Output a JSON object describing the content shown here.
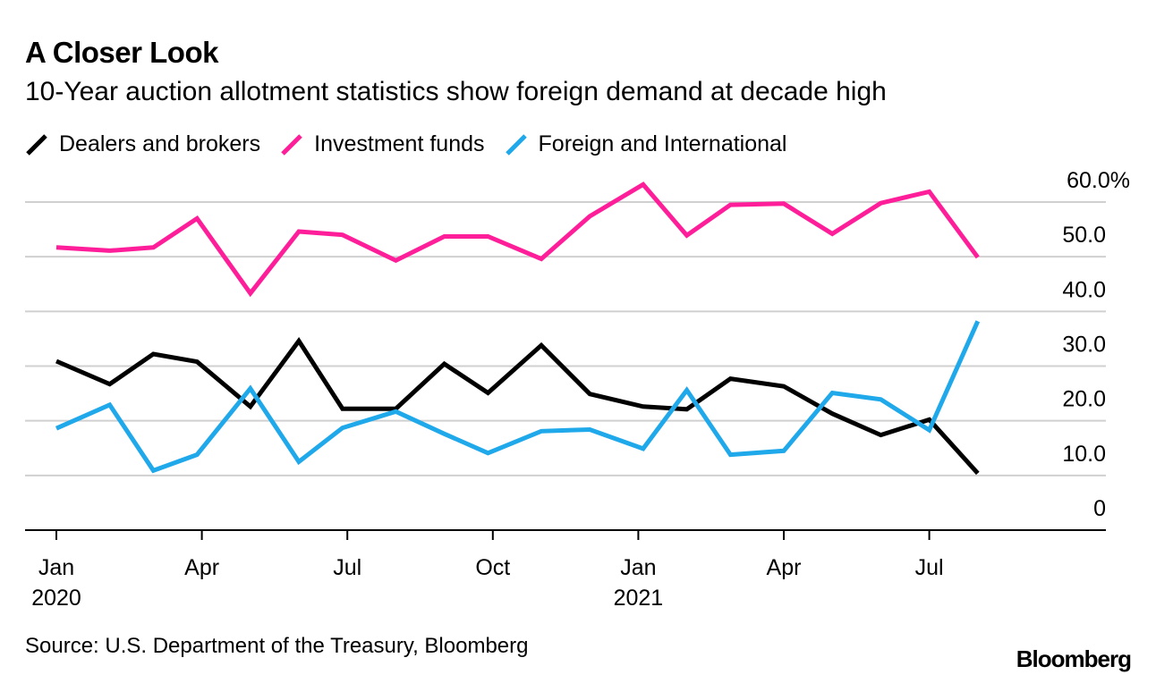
{
  "title": "A Closer Look",
  "subtitle": "10-Year auction allotment statistics show foreign demand at decade high",
  "source": "Source: U.S. Department of the Treasury, Bloomberg",
  "brand": "Bloomberg",
  "chart_data": {
    "type": "line",
    "ylim": [
      0,
      60
    ],
    "yticks": [
      0,
      10,
      20,
      30,
      40,
      50,
      60
    ],
    "ytick_labels": [
      "0",
      "10.0",
      "20.0",
      "30.0",
      "40.0",
      "50.0",
      "60.0%"
    ],
    "grid": true,
    "legend_position": "top-left",
    "x_month_index_range": [
      -0.2,
      20.5
    ],
    "xticks": [
      {
        "month_index": 0,
        "label": "Jan",
        "sublabel": "2020"
      },
      {
        "month_index": 3,
        "label": "Apr",
        "sublabel": ""
      },
      {
        "month_index": 6,
        "label": "Jul",
        "sublabel": ""
      },
      {
        "month_index": 9,
        "label": "Oct",
        "sublabel": ""
      },
      {
        "month_index": 12,
        "label": "Jan",
        "sublabel": "2021"
      },
      {
        "month_index": 15,
        "label": "Apr",
        "sublabel": ""
      },
      {
        "month_index": 18,
        "label": "Jul",
        "sublabel": ""
      }
    ],
    "x": [
      0,
      1.1,
      2,
      2.9,
      4,
      5,
      5.9,
      7,
      8,
      8.9,
      10,
      11,
      12.1,
      13,
      13.9,
      15,
      16,
      17,
      18,
      19
    ],
    "series": [
      {
        "name": "Dealers and brokers",
        "color": "#000000",
        "values": [
          30.9,
          26.7,
          32.2,
          30.8,
          22.6,
          34.6,
          22.2,
          22.2,
          30.4,
          25.1,
          33.8,
          24.9,
          22.6,
          22.1,
          27.7,
          26.3,
          21.3,
          17.4,
          20.2,
          10.4
        ]
      },
      {
        "name": "Investment funds",
        "color": "#ff1e99",
        "values": [
          51.7,
          51.1,
          51.7,
          57.0,
          43.3,
          54.6,
          54.0,
          49.3,
          53.7,
          53.7,
          49.6,
          57.4,
          63.2,
          53.9,
          59.5,
          59.7,
          54.2,
          59.8,
          61.9,
          49.9
        ]
      },
      {
        "name": "Foreign and International",
        "color": "#1fa8ea",
        "values": [
          18.6,
          22.9,
          10.9,
          13.8,
          25.9,
          12.5,
          18.7,
          21.7,
          17.6,
          14.1,
          18.1,
          18.4,
          14.9,
          25.6,
          13.8,
          14.5,
          25.1,
          23.9,
          18.3,
          38.2
        ]
      }
    ]
  }
}
